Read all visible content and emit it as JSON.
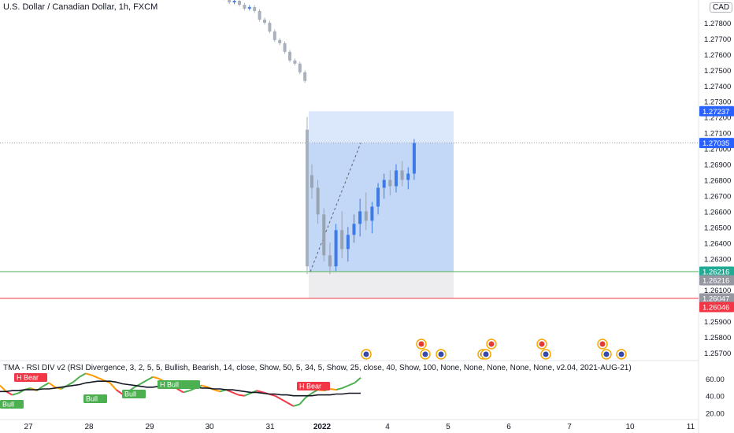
{
  "header": {
    "symbol_title": "U.S. Dollar / Canadian Dollar, 1h, FXCM",
    "currency": "CAD"
  },
  "indicator": {
    "title": "TMA - RSI DIV v2",
    "params": "(RSI Divergence, 3, 2, 5, 5, Bullish, Bearish, 14, close, Show, 50, 5, 34, 5, Show, 25, close, 40, Show, 100, None, None, None, None, None, v2.04, 2021-AUG-21)",
    "yticks": [
      "60.00",
      "40.00",
      "20.00"
    ],
    "labels": [
      "H Bear",
      "Bull",
      "Bull",
      "Bull",
      "H Bull",
      "H Bull",
      "H Bear"
    ]
  },
  "chart_data": {
    "type": "candlestick",
    "title": "U.S. Dollar / Canadian Dollar, 1h, FXCM",
    "y_axis_ticks": [
      "1.27800",
      "1.27700",
      "1.27600",
      "1.27500",
      "1.27400",
      "1.27300",
      "1.27200",
      "1.27100",
      "1.27000",
      "1.26900",
      "1.26800",
      "1.26700",
      "1.26600",
      "1.26500",
      "1.26400",
      "1.26300",
      "1.26100",
      "1.25900",
      "1.25800",
      "1.25700"
    ],
    "ylim": [
      1.2565,
      1.2792
    ],
    "x_axis_ticks": [
      "27",
      "28",
      "29",
      "30",
      "31",
      "2022",
      "4",
      "5",
      "6",
      "7",
      "10",
      "11"
    ],
    "price_labels": {
      "target": "1.27237",
      "last": "1.27035",
      "entry_a": "1.26216",
      "entry_b": "1.26216",
      "stop_a": "1.26047",
      "stop_b": "1.26046"
    },
    "levels": {
      "target": 1.27237,
      "last": 1.27035,
      "entry": 1.26216,
      "stop": 1.26046
    },
    "candles": [
      {
        "o": 1.2683,
        "h": 1.269,
        "l": 1.2668,
        "c": 1.2675
      },
      {
        "o": 1.2675,
        "h": 1.268,
        "l": 1.2652,
        "c": 1.2658
      },
      {
        "o": 1.2658,
        "h": 1.2662,
        "l": 1.2628,
        "c": 1.2632
      },
      {
        "o": 1.2632,
        "h": 1.264,
        "l": 1.262,
        "c": 1.2625
      },
      {
        "o": 1.2625,
        "h": 1.2652,
        "l": 1.2622,
        "c": 1.2648
      },
      {
        "o": 1.2648,
        "h": 1.266,
        "l": 1.263,
        "c": 1.2636
      },
      {
        "o": 1.2636,
        "h": 1.265,
        "l": 1.2628,
        "c": 1.2645
      },
      {
        "o": 1.2645,
        "h": 1.2658,
        "l": 1.264,
        "c": 1.2652
      },
      {
        "o": 1.2652,
        "h": 1.2668,
        "l": 1.2644,
        "c": 1.266
      },
      {
        "o": 1.266,
        "h": 1.2672,
        "l": 1.2648,
        "c": 1.2654
      },
      {
        "o": 1.2654,
        "h": 1.2666,
        "l": 1.2646,
        "c": 1.2663
      },
      {
        "o": 1.2663,
        "h": 1.2678,
        "l": 1.2658,
        "c": 1.2675
      },
      {
        "o": 1.2675,
        "h": 1.2684,
        "l": 1.2668,
        "c": 1.268
      },
      {
        "o": 1.268,
        "h": 1.2686,
        "l": 1.267,
        "c": 1.2676
      },
      {
        "o": 1.2676,
        "h": 1.269,
        "l": 1.2672,
        "c": 1.2686
      },
      {
        "o": 1.2686,
        "h": 1.2692,
        "l": 1.2676,
        "c": 1.268
      },
      {
        "o": 1.268,
        "h": 1.2688,
        "l": 1.2674,
        "c": 1.2684
      },
      {
        "o": 1.2684,
        "h": 1.2706,
        "l": 1.268,
        "c": 1.27035
      }
    ],
    "rsi": {
      "ylim": [
        15,
        70
      ],
      "values": [
        52,
        45,
        41,
        43,
        47,
        49,
        46,
        51,
        55,
        50,
        48,
        52,
        56,
        62,
        66,
        64,
        61,
        58,
        55,
        47,
        42,
        45,
        50,
        54,
        58,
        62,
        60,
        56,
        52,
        48,
        44,
        46,
        49,
        52,
        50,
        47,
        45,
        47,
        44,
        41,
        40,
        43,
        46,
        44,
        42,
        40,
        36,
        32,
        28,
        30,
        38,
        43,
        47,
        46,
        48,
        47,
        49,
        52,
        55,
        61
      ],
      "ma_values": [
        45,
        45,
        46,
        46,
        47,
        47,
        47,
        48,
        48,
        49,
        50,
        51,
        52,
        53,
        55,
        56,
        57,
        57,
        57,
        56,
        54,
        53,
        52,
        51,
        50,
        50,
        51,
        51,
        51,
        50,
        50,
        50,
        50,
        49,
        49,
        48,
        48,
        47,
        47,
        46,
        45,
        44,
        44,
        43,
        42,
        42,
        41,
        41,
        40,
        40,
        40,
        40,
        41,
        41,
        41,
        42,
        42,
        43,
        43,
        43
      ]
    }
  }
}
